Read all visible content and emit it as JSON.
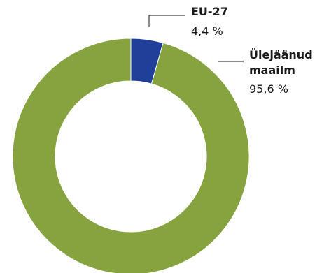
{
  "chart_data": {
    "type": "pie",
    "title": "",
    "donut": true,
    "slices": [
      {
        "label_lines": [
          "EU-27"
        ],
        "value": 4.4,
        "value_text": "4,4 %",
        "color": "#1f3f99"
      },
      {
        "label_lines": [
          "Ülejäänud",
          "maailm"
        ],
        "value": 95.6,
        "value_text": "95,6 %",
        "color": "#86a33f"
      }
    ]
  }
}
